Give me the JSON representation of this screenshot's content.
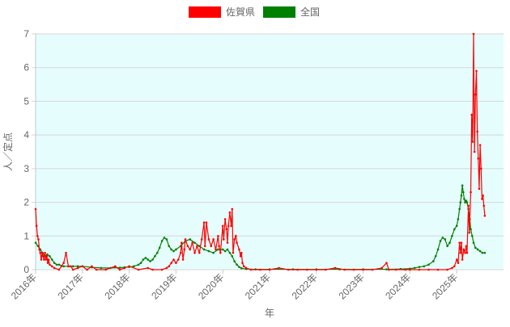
{
  "chart_data": {
    "type": "line",
    "title": "",
    "xlabel": "年",
    "ylabel": "人／定点",
    "ylim": [
      0,
      7
    ],
    "xlim": [
      2016.0,
      2026.0
    ],
    "y_ticks": [
      "0",
      "1",
      "2",
      "3",
      "4",
      "5",
      "6",
      "7"
    ],
    "x_ticks": [
      {
        "label": "2016年",
        "value": 2016
      },
      {
        "label": "2017年",
        "value": 2017
      },
      {
        "label": "2018年",
        "value": 2018
      },
      {
        "label": "2019年",
        "value": 2019
      },
      {
        "label": "2020年",
        "value": 2020
      },
      {
        "label": "2021年",
        "value": 2021
      },
      {
        "label": "2022年",
        "value": 2022
      },
      {
        "label": "2023年",
        "value": 2023
      },
      {
        "label": "2024年",
        "value": 2024
      },
      {
        "label": "2025年",
        "value": 2025
      }
    ],
    "grid": true,
    "legend_position": "top-center",
    "plot_background": "#e6fdfe",
    "series": [
      {
        "name": "佐賀県",
        "color": "#ff0000",
        "points": [
          [
            2016.0,
            1.8
          ],
          [
            2016.02,
            1.3
          ],
          [
            2016.04,
            1.0
          ],
          [
            2016.06,
            0.9
          ],
          [
            2016.08,
            0.6
          ],
          [
            2016.1,
            0.5
          ],
          [
            2016.12,
            0.3
          ],
          [
            2016.14,
            0.5
          ],
          [
            2016.16,
            0.4
          ],
          [
            2016.18,
            0.3
          ],
          [
            2016.2,
            0.5
          ],
          [
            2016.22,
            0.3
          ],
          [
            2016.24,
            0.4
          ],
          [
            2016.26,
            0.2
          ],
          [
            2016.28,
            0.3
          ],
          [
            2016.3,
            0.15
          ],
          [
            2016.35,
            0.1
          ],
          [
            2016.4,
            0.05
          ],
          [
            2016.5,
            0.0
          ],
          [
            2016.55,
            0.1
          ],
          [
            2016.6,
            0.2
          ],
          [
            2016.65,
            0.5
          ],
          [
            2016.7,
            0.1
          ],
          [
            2016.75,
            0.1
          ],
          [
            2016.8,
            0.0
          ],
          [
            2016.9,
            0.05
          ],
          [
            2017.0,
            0.1
          ],
          [
            2017.1,
            0.0
          ],
          [
            2017.2,
            0.1
          ],
          [
            2017.3,
            0.0
          ],
          [
            2017.5,
            0.0
          ],
          [
            2017.7,
            0.1
          ],
          [
            2017.8,
            0.0
          ],
          [
            2017.9,
            0.05
          ],
          [
            2018.0,
            0.1
          ],
          [
            2018.2,
            0.0
          ],
          [
            2018.4,
            0.05
          ],
          [
            2018.5,
            0.0
          ],
          [
            2018.7,
            0.0
          ],
          [
            2018.8,
            0.05
          ],
          [
            2018.85,
            0.1
          ],
          [
            2018.9,
            0.2
          ],
          [
            2018.95,
            0.3
          ],
          [
            2019.0,
            0.2
          ],
          [
            2019.05,
            0.3
          ],
          [
            2019.1,
            0.5
          ],
          [
            2019.12,
            0.8
          ],
          [
            2019.15,
            0.3
          ],
          [
            2019.18,
            0.6
          ],
          [
            2019.2,
            0.9
          ],
          [
            2019.25,
            0.7
          ],
          [
            2019.3,
            0.6
          ],
          [
            2019.35,
            0.8
          ],
          [
            2019.4,
            0.5
          ],
          [
            2019.45,
            0.7
          ],
          [
            2019.5,
            0.5
          ],
          [
            2019.55,
            0.9
          ],
          [
            2019.6,
            1.4
          ],
          [
            2019.62,
            0.7
          ],
          [
            2019.65,
            1.4
          ],
          [
            2019.7,
            0.9
          ],
          [
            2019.75,
            0.7
          ],
          [
            2019.8,
            0.9
          ],
          [
            2019.85,
            0.6
          ],
          [
            2019.9,
            1.0
          ],
          [
            2019.92,
            0.7
          ],
          [
            2019.95,
            0.5
          ],
          [
            2020.0,
            1.3
          ],
          [
            2020.02,
            0.9
          ],
          [
            2020.05,
            1.5
          ],
          [
            2020.08,
            1.2
          ],
          [
            2020.1,
            0.8
          ],
          [
            2020.12,
            1.3
          ],
          [
            2020.15,
            1.7
          ],
          [
            2020.18,
            1.3
          ],
          [
            2020.2,
            1.8
          ],
          [
            2020.22,
            0.5
          ],
          [
            2020.25,
            0.9
          ],
          [
            2020.28,
            1.0
          ],
          [
            2020.3,
            0.8
          ],
          [
            2020.35,
            0.6
          ],
          [
            2020.38,
            0.4
          ],
          [
            2020.4,
            0.5
          ],
          [
            2020.42,
            0.2
          ],
          [
            2020.45,
            0.1
          ],
          [
            2020.5,
            0.05
          ],
          [
            2020.6,
            0.0
          ],
          [
            2020.8,
            0.0
          ],
          [
            2021.0,
            0.0
          ],
          [
            2021.2,
            0.05
          ],
          [
            2021.4,
            0.0
          ],
          [
            2021.6,
            0.0
          ],
          [
            2021.8,
            0.0
          ],
          [
            2022.0,
            0.0
          ],
          [
            2022.2,
            0.0
          ],
          [
            2022.4,
            0.05
          ],
          [
            2022.6,
            0.0
          ],
          [
            2022.8,
            0.0
          ],
          [
            2023.0,
            0.0
          ],
          [
            2023.2,
            0.0
          ],
          [
            2023.4,
            0.05
          ],
          [
            2023.5,
            0.2
          ],
          [
            2023.55,
            0.0
          ],
          [
            2023.7,
            0.0
          ],
          [
            2023.9,
            0.0
          ],
          [
            2024.0,
            0.0
          ],
          [
            2024.2,
            0.0
          ],
          [
            2024.4,
            0.0
          ],
          [
            2024.6,
            0.0
          ],
          [
            2024.8,
            0.0
          ],
          [
            2024.9,
            0.05
          ],
          [
            2024.95,
            0.1
          ],
          [
            2025.0,
            0.3
          ],
          [
            2025.03,
            0.2
          ],
          [
            2025.06,
            0.8
          ],
          [
            2025.08,
            0.5
          ],
          [
            2025.1,
            0.8
          ],
          [
            2025.12,
            0.3
          ],
          [
            2025.15,
            0.6
          ],
          [
            2025.18,
            0.5
          ],
          [
            2025.2,
            0.7
          ],
          [
            2025.22,
            0.5
          ],
          [
            2025.25,
            1.9
          ],
          [
            2025.27,
            1.1
          ],
          [
            2025.3,
            2.3
          ],
          [
            2025.32,
            4.6
          ],
          [
            2025.34,
            3.8
          ],
          [
            2025.36,
            7.0
          ],
          [
            2025.38,
            3.5
          ],
          [
            2025.4,
            5.2
          ],
          [
            2025.42,
            5.9
          ],
          [
            2025.44,
            4.1
          ],
          [
            2025.46,
            3.3
          ],
          [
            2025.48,
            2.4
          ],
          [
            2025.5,
            3.7
          ],
          [
            2025.52,
            3.0
          ],
          [
            2025.54,
            2.1
          ],
          [
            2025.56,
            2.2
          ],
          [
            2025.58,
            1.9
          ],
          [
            2025.6,
            1.6
          ]
        ]
      },
      {
        "name": "全国",
        "color": "#008000",
        "points": [
          [
            2016.0,
            0.8
          ],
          [
            2016.05,
            0.7
          ],
          [
            2016.1,
            0.6
          ],
          [
            2016.15,
            0.5
          ],
          [
            2016.2,
            0.4
          ],
          [
            2016.25,
            0.45
          ],
          [
            2016.3,
            0.4
          ],
          [
            2016.35,
            0.3
          ],
          [
            2016.4,
            0.2
          ],
          [
            2016.45,
            0.15
          ],
          [
            2016.5,
            0.15
          ],
          [
            2016.6,
            0.1
          ],
          [
            2016.7,
            0.1
          ],
          [
            2016.8,
            0.1
          ],
          [
            2016.9,
            0.1
          ],
          [
            2017.0,
            0.1
          ],
          [
            2017.2,
            0.07
          ],
          [
            2017.4,
            0.05
          ],
          [
            2017.6,
            0.05
          ],
          [
            2017.8,
            0.06
          ],
          [
            2017.9,
            0.07
          ],
          [
            2018.0,
            0.08
          ],
          [
            2018.1,
            0.1
          ],
          [
            2018.2,
            0.15
          ],
          [
            2018.25,
            0.2
          ],
          [
            2018.3,
            0.3
          ],
          [
            2018.35,
            0.35
          ],
          [
            2018.4,
            0.3
          ],
          [
            2018.45,
            0.25
          ],
          [
            2018.5,
            0.3
          ],
          [
            2018.55,
            0.4
          ],
          [
            2018.6,
            0.5
          ],
          [
            2018.65,
            0.65
          ],
          [
            2018.7,
            0.85
          ],
          [
            2018.75,
            0.95
          ],
          [
            2018.8,
            0.9
          ],
          [
            2018.85,
            0.7
          ],
          [
            2018.9,
            0.6
          ],
          [
            2018.95,
            0.55
          ],
          [
            2019.0,
            0.6
          ],
          [
            2019.1,
            0.7
          ],
          [
            2019.2,
            0.85
          ],
          [
            2019.3,
            0.9
          ],
          [
            2019.4,
            0.8
          ],
          [
            2019.5,
            0.7
          ],
          [
            2019.6,
            0.6
          ],
          [
            2019.7,
            0.55
          ],
          [
            2019.8,
            0.5
          ],
          [
            2019.9,
            0.6
          ],
          [
            2020.0,
            0.6
          ],
          [
            2020.05,
            0.55
          ],
          [
            2020.1,
            0.6
          ],
          [
            2020.15,
            0.5
          ],
          [
            2020.2,
            0.4
          ],
          [
            2020.25,
            0.25
          ],
          [
            2020.3,
            0.15
          ],
          [
            2020.35,
            0.08
          ],
          [
            2020.4,
            0.04
          ],
          [
            2020.5,
            0.02
          ],
          [
            2020.7,
            0.01
          ],
          [
            2021.0,
            0.01
          ],
          [
            2021.5,
            0.01
          ],
          [
            2022.0,
            0.01
          ],
          [
            2022.5,
            0.01
          ],
          [
            2023.0,
            0.01
          ],
          [
            2023.5,
            0.01
          ],
          [
            2023.8,
            0.02
          ],
          [
            2024.0,
            0.03
          ],
          [
            2024.1,
            0.05
          ],
          [
            2024.2,
            0.08
          ],
          [
            2024.3,
            0.1
          ],
          [
            2024.4,
            0.15
          ],
          [
            2024.5,
            0.25
          ],
          [
            2024.55,
            0.4
          ],
          [
            2024.6,
            0.6
          ],
          [
            2024.65,
            0.85
          ],
          [
            2024.7,
            0.95
          ],
          [
            2024.75,
            0.9
          ],
          [
            2024.8,
            0.7
          ],
          [
            2024.85,
            0.8
          ],
          [
            2024.9,
            1.0
          ],
          [
            2024.95,
            1.2
          ],
          [
            2025.0,
            1.3
          ],
          [
            2025.03,
            1.5
          ],
          [
            2025.06,
            1.8
          ],
          [
            2025.08,
            2.0
          ],
          [
            2025.1,
            2.2
          ],
          [
            2025.12,
            2.5
          ],
          [
            2025.14,
            2.3
          ],
          [
            2025.16,
            2.1
          ],
          [
            2025.18,
            2.0
          ],
          [
            2025.2,
            2.05
          ],
          [
            2025.22,
            2.0
          ],
          [
            2025.25,
            1.8
          ],
          [
            2025.28,
            1.5
          ],
          [
            2025.3,
            1.2
          ],
          [
            2025.33,
            1.0
          ],
          [
            2025.36,
            0.8
          ],
          [
            2025.4,
            0.65
          ],
          [
            2025.45,
            0.6
          ],
          [
            2025.5,
            0.55
          ],
          [
            2025.55,
            0.5
          ],
          [
            2025.6,
            0.5
          ]
        ]
      }
    ]
  }
}
